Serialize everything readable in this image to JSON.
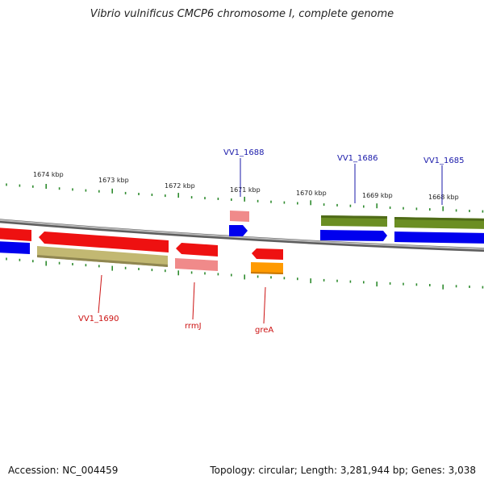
{
  "title": "Vibrio vulnificus CMCP6 chromosome I, complete genome",
  "footer": {
    "accession": "Accession: NC_004459",
    "summary": "Topology: circular; Length: 3,281,944 bp; Genes: 3,038"
  },
  "colors": {
    "backbone": "#8a8a8a",
    "tick": "#2e8b2e",
    "blue_label": "#1a1aaa",
    "red_label": "#cc1111"
  },
  "scale_labels": [
    "1674 kbp",
    "1673 kbp",
    "1672 kbp",
    "1671 kbp",
    "1670 kbp",
    "1669 kbp",
    "1668 kbp"
  ],
  "gene_labels": {
    "top": [
      "VV1_1688",
      "VV1_1686",
      "VV1_1685"
    ],
    "bottom": [
      "VV1_1690",
      "rrmJ",
      "greA"
    ]
  }
}
